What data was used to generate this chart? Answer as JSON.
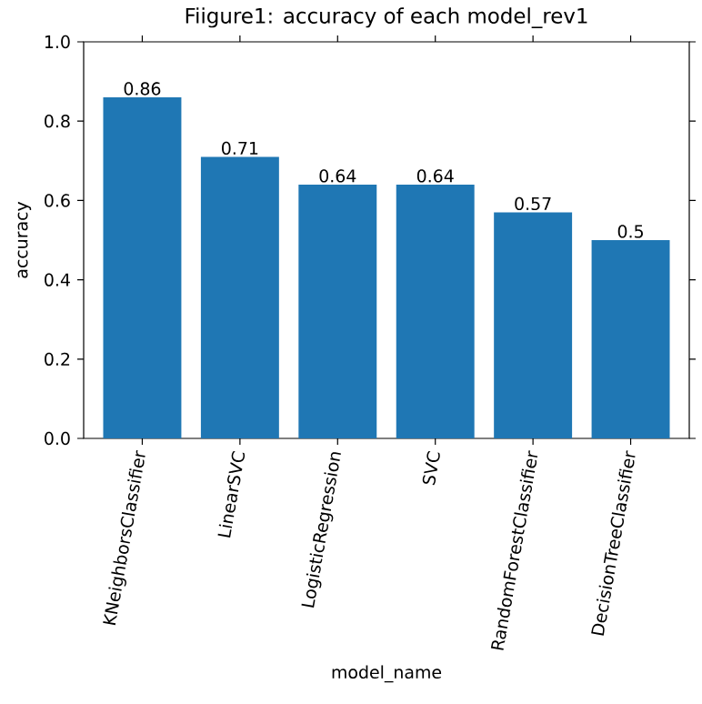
{
  "chart_data": {
    "type": "bar",
    "title": "Fiigure1: accuracy of each model_rev1",
    "xlabel": "model_name",
    "ylabel": "accuracy",
    "categories": [
      "KNeighborsClassifier",
      "LinearSVC",
      "LogisticRegression",
      "SVC",
      "RandomForestClassifier",
      "DecisionTreeClassifier"
    ],
    "values": [
      0.86,
      0.71,
      0.64,
      0.64,
      0.57,
      0.5
    ],
    "color": "#1f77b4",
    "data_labels": true,
    "ylim": [
      0,
      1
    ],
    "yticks": [
      {
        "value": 0,
        "label": "0.0"
      },
      0.2,
      0.4,
      0.6,
      0.8,
      {
        "value": 1,
        "label": "1.0"
      }
    ]
  }
}
